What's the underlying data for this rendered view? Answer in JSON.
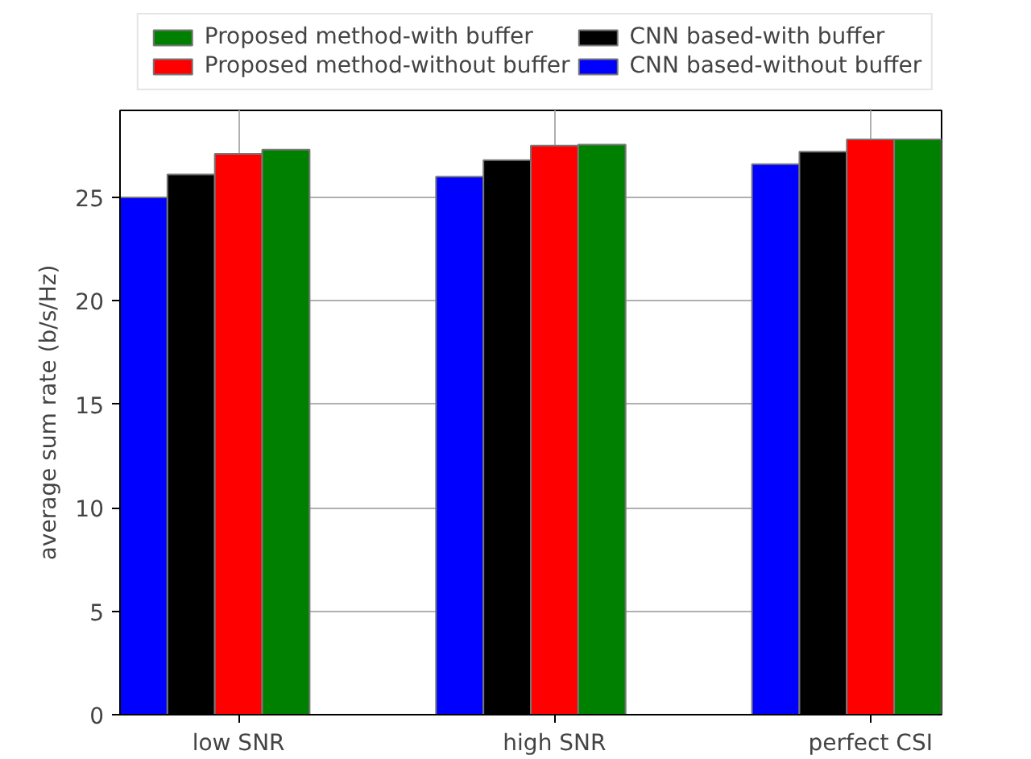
{
  "chart_data": {
    "type": "bar",
    "ylabel": "average sum rate (b/s/Hz)",
    "categories": [
      "low SNR",
      "high SNR",
      "perfect CSI"
    ],
    "series": [
      {
        "name": "CNN based-without buffer",
        "color": "#0000ff",
        "values": [
          25.0,
          26.0,
          26.6
        ]
      },
      {
        "name": "CNN based-with buffer",
        "color": "#000000",
        "values": [
          26.1,
          26.8,
          27.2
        ]
      },
      {
        "name": "Proposed method-without buffer",
        "color": "#ff0000",
        "values": [
          27.1,
          27.5,
          27.8
        ]
      },
      {
        "name": "Proposed method-with buffer",
        "color": "#008000",
        "values": [
          27.3,
          27.55,
          27.8
        ]
      }
    ],
    "ylim": [
      0,
      29.2
    ],
    "yticks": [
      0,
      5,
      10,
      15,
      20,
      25
    ],
    "grid": true,
    "legend": "top"
  }
}
